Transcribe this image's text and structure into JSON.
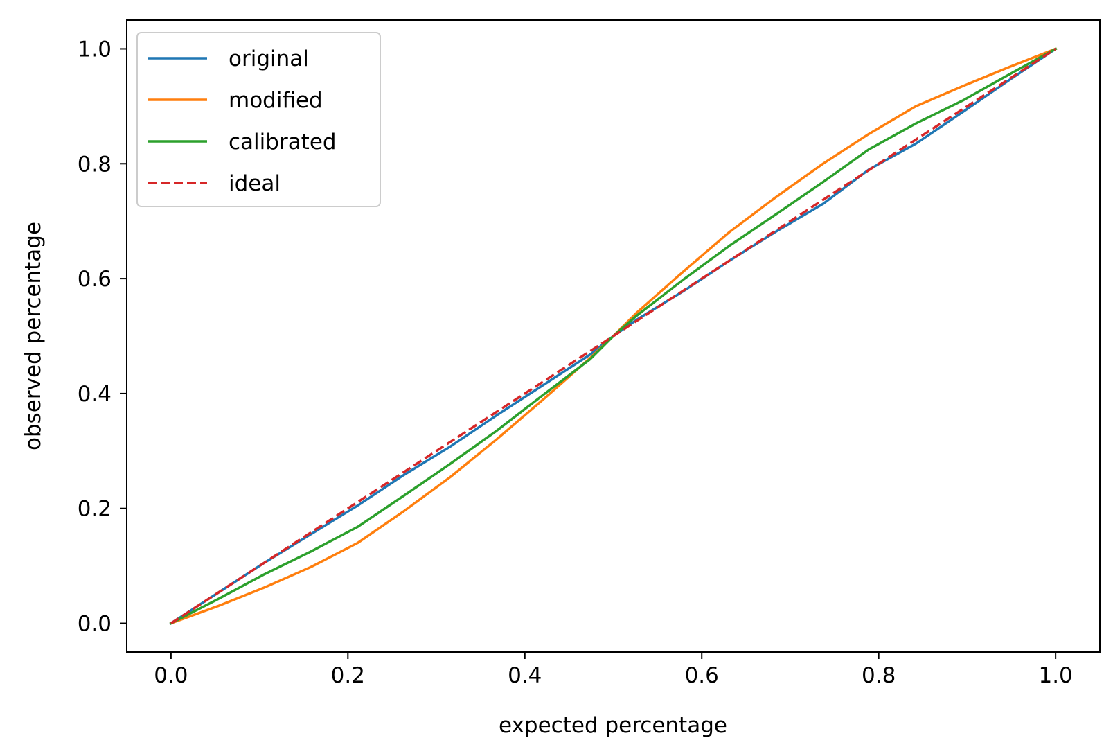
{
  "chart_data": {
    "type": "line",
    "xlabel": "expected percentage",
    "ylabel": "observed percentage",
    "xlim": [
      -0.05,
      1.05
    ],
    "ylim": [
      -0.05,
      1.05
    ],
    "xticks": [
      "0.0",
      "0.2",
      "0.4",
      "0.6",
      "0.8",
      "1.0"
    ],
    "yticks": [
      "0.0",
      "0.2",
      "0.4",
      "0.6",
      "0.8",
      "1.0"
    ],
    "grid": false,
    "legend_position": "upper-left",
    "series": [
      {
        "name": "original",
        "color": "#1f77b4",
        "style": "solid",
        "x": [
          0,
          0.053,
          0.105,
          0.158,
          0.211,
          0.263,
          0.316,
          0.368,
          0.421,
          0.474,
          0.5,
          0.526,
          0.579,
          0.632,
          0.684,
          0.737,
          0.789,
          0.842,
          0.895,
          0.947,
          1.0
        ],
        "y": [
          0,
          0.053,
          0.105,
          0.155,
          0.205,
          0.258,
          0.308,
          0.362,
          0.415,
          0.468,
          0.5,
          0.528,
          0.578,
          0.632,
          0.682,
          0.73,
          0.79,
          0.835,
          0.89,
          0.945,
          1.0
        ]
      },
      {
        "name": "modified",
        "color": "#ff7f0e",
        "style": "solid",
        "x": [
          0,
          0.053,
          0.105,
          0.158,
          0.211,
          0.263,
          0.316,
          0.368,
          0.421,
          0.474,
          0.5,
          0.526,
          0.579,
          0.632,
          0.684,
          0.737,
          0.789,
          0.842,
          0.895,
          0.947,
          1.0
        ],
        "y": [
          0,
          0.03,
          0.062,
          0.098,
          0.14,
          0.195,
          0.255,
          0.32,
          0.39,
          0.462,
          0.5,
          0.54,
          0.612,
          0.682,
          0.742,
          0.8,
          0.852,
          0.9,
          0.935,
          0.968,
          1.0
        ]
      },
      {
        "name": "calibrated",
        "color": "#2ca02c",
        "style": "solid",
        "x": [
          0,
          0.053,
          0.105,
          0.158,
          0.211,
          0.263,
          0.316,
          0.368,
          0.421,
          0.474,
          0.5,
          0.526,
          0.579,
          0.632,
          0.684,
          0.737,
          0.789,
          0.842,
          0.895,
          0.947,
          1.0
        ],
        "y": [
          0,
          0.042,
          0.085,
          0.125,
          0.168,
          0.222,
          0.278,
          0.335,
          0.398,
          0.46,
          0.5,
          0.535,
          0.598,
          0.658,
          0.712,
          0.768,
          0.825,
          0.87,
          0.91,
          0.955,
          1.0
        ]
      },
      {
        "name": "ideal",
        "color": "#d62728",
        "style": "dashed",
        "x": [
          0,
          1.0
        ],
        "y": [
          0,
          1.0
        ]
      }
    ]
  }
}
